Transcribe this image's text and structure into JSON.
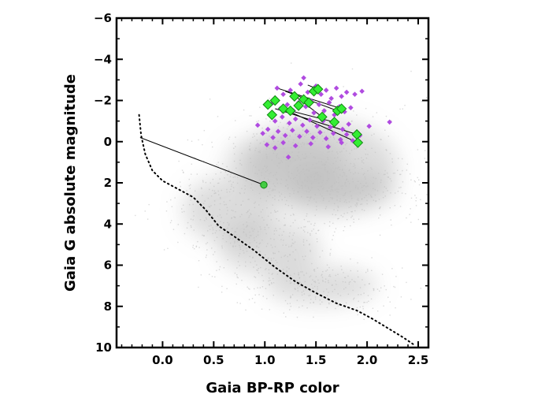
{
  "chart_data": {
    "type": "scatter",
    "title": "",
    "xlabel": "Gaia BP-RP color",
    "ylabel": "Gaia G absolute magnitude",
    "xlim": [
      -0.45,
      2.6
    ],
    "ylim": [
      10,
      -6
    ],
    "y_axis_inverted": true,
    "grid": false,
    "legend": "none",
    "x_ticks": [
      {
        "value": 0.0,
        "label": "0.0"
      },
      {
        "value": 0.5,
        "label": "0.5"
      },
      {
        "value": 1.0,
        "label": "1.0"
      },
      {
        "value": 1.5,
        "label": "1.5"
      },
      {
        "value": 2.0,
        "label": "2.0"
      },
      {
        "value": 2.5,
        "label": "2.5"
      }
    ],
    "y_ticks": [
      {
        "value": -6,
        "label": "−6"
      },
      {
        "value": -4,
        "label": "−4"
      },
      {
        "value": -2,
        "label": "−2"
      },
      {
        "value": 0,
        "label": "0"
      },
      {
        "value": 2,
        "label": "2"
      },
      {
        "value": 4,
        "label": "4"
      },
      {
        "value": 6,
        "label": "6"
      },
      {
        "value": 8,
        "label": "8"
      },
      {
        "value": 10,
        "label": "10"
      }
    ],
    "colors": {
      "background_density": "#9a9a9a",
      "purple_points": "#b04be0",
      "green_points": "#33ee33",
      "green_edge": "#118811",
      "lines": "#000000"
    },
    "background_density": [
      {
        "x": 0.65,
        "y": 3.3,
        "rx": 0.45,
        "ry": 1.6,
        "opacity": 0.35
      },
      {
        "x": 1.05,
        "y": 5.2,
        "rx": 0.5,
        "ry": 1.3,
        "opacity": 0.35
      },
      {
        "x": 1.55,
        "y": 7.0,
        "rx": 0.55,
        "ry": 0.9,
        "opacity": 0.35
      },
      {
        "x": 1.55,
        "y": 1.2,
        "rx": 0.75,
        "ry": 2.3,
        "opacity": 0.35
      },
      {
        "x": 1.75,
        "y": 2.4,
        "rx": 0.55,
        "ry": 1.0,
        "opacity": 0.3
      },
      {
        "x": 1.2,
        "y": 0.9,
        "rx": 0.6,
        "ry": 1.3,
        "opacity": 0.3
      }
    ],
    "dotted_curve": [
      {
        "x": -0.23,
        "y": -1.3
      },
      {
        "x": -0.21,
        "y": -0.3
      },
      {
        "x": -0.17,
        "y": 0.6
      },
      {
        "x": -0.1,
        "y": 1.4
      },
      {
        "x": 0.0,
        "y": 1.9
      },
      {
        "x": 0.15,
        "y": 2.3
      },
      {
        "x": 0.3,
        "y": 2.7
      },
      {
        "x": 0.42,
        "y": 3.3
      },
      {
        "x": 0.55,
        "y": 4.1
      },
      {
        "x": 0.7,
        "y": 4.6
      },
      {
        "x": 0.9,
        "y": 5.3
      },
      {
        "x": 1.1,
        "y": 6.1
      },
      {
        "x": 1.3,
        "y": 6.8
      },
      {
        "x": 1.5,
        "y": 7.35
      },
      {
        "x": 1.7,
        "y": 7.85
      },
      {
        "x": 1.9,
        "y": 8.2
      },
      {
        "x": 2.05,
        "y": 8.6
      },
      {
        "x": 2.2,
        "y": 9.05
      },
      {
        "x": 2.35,
        "y": 9.5
      },
      {
        "x": 2.47,
        "y": 9.9
      }
    ],
    "purple_points": [
      {
        "x": 1.12,
        "y": -2.6
      },
      {
        "x": 1.18,
        "y": -2.3
      },
      {
        "x": 1.25,
        "y": -2.5
      },
      {
        "x": 1.3,
        "y": -2.2
      },
      {
        "x": 1.35,
        "y": -2.8
      },
      {
        "x": 1.38,
        "y": -3.1
      },
      {
        "x": 1.42,
        "y": -2.4
      },
      {
        "x": 1.45,
        "y": -2.0
      },
      {
        "x": 1.5,
        "y": -2.7
      },
      {
        "x": 1.55,
        "y": -2.3
      },
      {
        "x": 1.6,
        "y": -2.5
      },
      {
        "x": 1.65,
        "y": -2.1
      },
      {
        "x": 1.7,
        "y": -2.6
      },
      {
        "x": 1.75,
        "y": -2.2
      },
      {
        "x": 1.8,
        "y": -2.4
      },
      {
        "x": 1.88,
        "y": -2.3
      },
      {
        "x": 1.95,
        "y": -2.45
      },
      {
        "x": 1.08,
        "y": -1.9
      },
      {
        "x": 1.15,
        "y": -1.6
      },
      {
        "x": 1.22,
        "y": -1.8
      },
      {
        "x": 1.28,
        "y": -1.5
      },
      {
        "x": 1.33,
        "y": -1.9
      },
      {
        "x": 1.4,
        "y": -1.7
      },
      {
        "x": 1.48,
        "y": -1.4
      },
      {
        "x": 1.53,
        "y": -1.8
      },
      {
        "x": 1.58,
        "y": -1.5
      },
      {
        "x": 1.63,
        "y": -1.9
      },
      {
        "x": 1.68,
        "y": -1.3
      },
      {
        "x": 1.73,
        "y": -1.7
      },
      {
        "x": 1.78,
        "y": -1.45
      },
      {
        "x": 1.84,
        "y": -1.65
      },
      {
        "x": 1.05,
        "y": -1.3
      },
      {
        "x": 1.1,
        "y": -1.0
      },
      {
        "x": 1.17,
        "y": -1.2
      },
      {
        "x": 1.24,
        "y": -0.9
      },
      {
        "x": 1.3,
        "y": -1.1
      },
      {
        "x": 1.37,
        "y": -0.8
      },
      {
        "x": 1.44,
        "y": -1.05
      },
      {
        "x": 1.51,
        "y": -0.75
      },
      {
        "x": 1.57,
        "y": -1.0
      },
      {
        "x": 1.64,
        "y": -0.7
      },
      {
        "x": 1.7,
        "y": -0.95
      },
      {
        "x": 1.76,
        "y": -0.6
      },
      {
        "x": 1.82,
        "y": -0.85
      },
      {
        "x": 0.93,
        "y": -0.8
      },
      {
        "x": 0.98,
        "y": -0.4
      },
      {
        "x": 1.03,
        "y": -0.6
      },
      {
        "x": 1.08,
        "y": -0.2
      },
      {
        "x": 1.13,
        "y": -0.5
      },
      {
        "x": 1.2,
        "y": -0.3
      },
      {
        "x": 1.27,
        "y": -0.55
      },
      {
        "x": 1.34,
        "y": -0.25
      },
      {
        "x": 1.41,
        "y": -0.5
      },
      {
        "x": 1.47,
        "y": -0.2
      },
      {
        "x": 1.54,
        "y": -0.45
      },
      {
        "x": 1.6,
        "y": -0.15
      },
      {
        "x": 1.67,
        "y": -0.4
      },
      {
        "x": 1.74,
        "y": -0.1
      },
      {
        "x": 1.8,
        "y": -0.35
      },
      {
        "x": 1.86,
        "y": -0.05
      },
      {
        "x": 1.93,
        "y": -0.3
      },
      {
        "x": 2.02,
        "y": -0.75
      },
      {
        "x": 2.22,
        "y": -0.95
      },
      {
        "x": 1.02,
        "y": 0.15
      },
      {
        "x": 1.1,
        "y": 0.3
      },
      {
        "x": 1.18,
        "y": 0.05
      },
      {
        "x": 1.23,
        "y": 0.75
      },
      {
        "x": 1.3,
        "y": 0.2
      },
      {
        "x": 1.45,
        "y": 0.1
      },
      {
        "x": 1.62,
        "y": 0.25
      },
      {
        "x": 1.75,
        "y": 0.05
      }
    ],
    "green_points": [
      {
        "x": 1.03,
        "y": -1.8,
        "size": "large"
      },
      {
        "x": 1.1,
        "y": -2.0,
        "size": "large"
      },
      {
        "x": 1.07,
        "y": -1.3,
        "size": "large"
      },
      {
        "x": 1.18,
        "y": -1.6,
        "size": "large"
      },
      {
        "x": 1.25,
        "y": -1.5,
        "size": "large"
      },
      {
        "x": 1.29,
        "y": -2.2,
        "size": "large"
      },
      {
        "x": 1.33,
        "y": -1.75,
        "size": "large"
      },
      {
        "x": 1.38,
        "y": -2.05,
        "size": "large"
      },
      {
        "x": 1.43,
        "y": -1.9,
        "size": "large"
      },
      {
        "x": 1.48,
        "y": -2.45,
        "size": "large"
      },
      {
        "x": 1.52,
        "y": -2.55,
        "size": "large"
      },
      {
        "x": 1.56,
        "y": -1.2,
        "size": "large"
      },
      {
        "x": 1.68,
        "y": -0.95,
        "size": "large"
      },
      {
        "x": 1.71,
        "y": -1.5,
        "size": "large"
      },
      {
        "x": 1.75,
        "y": -1.6,
        "size": "large"
      },
      {
        "x": 1.9,
        "y": -0.35,
        "size": "large"
      },
      {
        "x": 1.91,
        "y": 0.05,
        "size": "large"
      },
      {
        "x": 0.99,
        "y": 2.1,
        "size": "small",
        "shape": "circle"
      }
    ],
    "connecting_lines": [
      {
        "from": {
          "x": -0.22,
          "y": -0.2
        },
        "to": {
          "x": 0.99,
          "y": 2.1
        }
      },
      {
        "from": {
          "x": 1.12,
          "y": -2.6
        },
        "to": {
          "x": 1.75,
          "y": -1.6
        }
      },
      {
        "from": {
          "x": 1.2,
          "y": -2.45
        },
        "to": {
          "x": 1.71,
          "y": -1.5
        }
      },
      {
        "from": {
          "x": 1.1,
          "y": -1.6
        },
        "to": {
          "x": 1.9,
          "y": -0.35
        }
      },
      {
        "from": {
          "x": 1.2,
          "y": -1.55
        },
        "to": {
          "x": 1.91,
          "y": 0.05
        }
      },
      {
        "from": {
          "x": 1.25,
          "y": -1.5
        },
        "to": {
          "x": 1.68,
          "y": -0.95
        }
      },
      {
        "from": {
          "x": 1.3,
          "y": -2.2
        },
        "to": {
          "x": 1.56,
          "y": -1.2
        }
      },
      {
        "from": {
          "x": 1.42,
          "y": -2.75
        },
        "to": {
          "x": 1.52,
          "y": -2.55
        }
      }
    ]
  }
}
